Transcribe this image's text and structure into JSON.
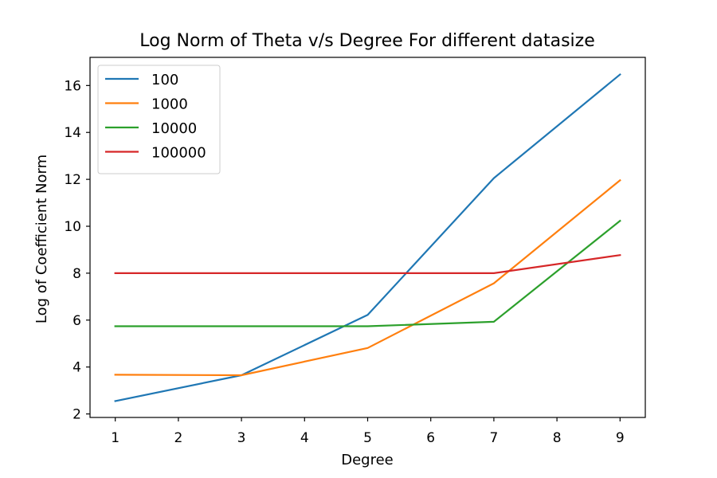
{
  "chart_data": {
    "type": "line",
    "title": "Log Norm of Theta v/s Degree For different datasize",
    "xlabel": "Degree",
    "ylabel": "Log of Coefficient Norm",
    "x": [
      1,
      3,
      5,
      7,
      9
    ],
    "xlim": [
      0.6,
      9.4
    ],
    "ylim": [
      1.85,
      17.2
    ],
    "xticks": [
      1,
      2,
      3,
      4,
      5,
      6,
      7,
      8,
      9
    ],
    "yticks": [
      2,
      4,
      6,
      8,
      10,
      12,
      14,
      16
    ],
    "xtick_labels": [
      "1",
      "2",
      "3",
      "4",
      "5",
      "6",
      "7",
      "8",
      "9"
    ],
    "ytick_labels": [
      "2",
      "4",
      "6",
      "8",
      "10",
      "12",
      "14",
      "16"
    ],
    "grid": false,
    "legend_position": "upper-left",
    "series": [
      {
        "name": "100",
        "color": "#1f77b4",
        "values": [
          2.55,
          3.65,
          6.22,
          12.05,
          16.47
        ]
      },
      {
        "name": "1000",
        "color": "#ff7f0e",
        "values": [
          3.67,
          3.65,
          4.81,
          7.57,
          11.96
        ]
      },
      {
        "name": "10000",
        "color": "#2ca02c",
        "values": [
          5.74,
          5.74,
          5.74,
          5.93,
          10.23
        ]
      },
      {
        "name": "100000",
        "color": "#d62728",
        "values": [
          8.0,
          8.0,
          8.0,
          8.0,
          8.77
        ]
      }
    ]
  }
}
